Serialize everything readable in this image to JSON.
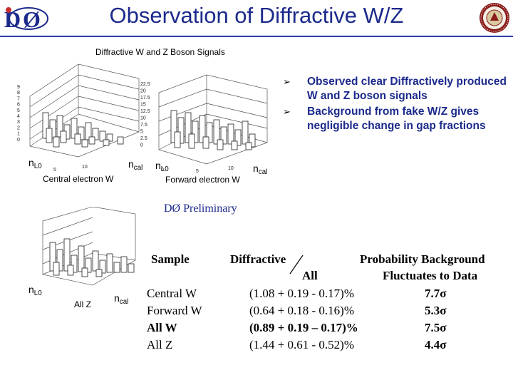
{
  "header": {
    "title": "Observation of Diffractive W/Z",
    "logo_text": "DØ",
    "colors": {
      "title": "#1c2a8c",
      "rule": "#2b3fa8"
    }
  },
  "figure": {
    "subtitle": "Diffractive W and Z Boson Signals",
    "plots": [
      {
        "caption": "Central electron W",
        "x_axis": "n",
        "x_axis_sub": "L0",
        "y_axis": "n",
        "y_axis_sub": "cal",
        "z_ticks": [
          "9",
          "8",
          "7",
          "6",
          "5",
          "4",
          "3",
          "2",
          "1",
          "0"
        ],
        "x_ticks": [
          "0",
          "5",
          "10"
        ]
      },
      {
        "caption": "Forward electron W",
        "x_axis": "n",
        "x_axis_sub": "L0",
        "y_axis": "n",
        "y_axis_sub": "cal",
        "z_ticks": [
          "22.5",
          "20",
          "17.5",
          "15",
          "12.5",
          "10",
          "7.5",
          "5",
          "2.5",
          "0"
        ],
        "x_ticks": [
          "0",
          "5",
          "10"
        ]
      },
      {
        "caption": "All Z",
        "x_axis": "n",
        "x_axis_sub": "L0",
        "y_axis": "n",
        "y_axis_sub": "cal",
        "z_ticks": [],
        "x_ticks": []
      }
    ]
  },
  "bullets": [
    {
      "icon": "arrow-bullet-icon",
      "text": "Observed clear Diffractively produced W and Z boson signals"
    },
    {
      "icon": "arrow-bullet-icon",
      "text": "Background from fake W/Z gives negligible change in gap fractions"
    }
  ],
  "preliminary": "DØ Preliminary",
  "table": {
    "headers": {
      "sample": "Sample",
      "diffractive": "Diffractive",
      "all": "All",
      "probability": "Probability Background",
      "fluctuates": "Fluctuates to Data"
    },
    "rows": [
      {
        "sample": "Central W",
        "ratio": "(1.08 + 0.19 - 0.17)%",
        "prob": "7.7σ",
        "bold": false
      },
      {
        "sample": "Forward W",
        "ratio": "(0.64 + 0.18 - 0.16)%",
        "prob": "5.3σ",
        "bold": false
      },
      {
        "sample": "All W",
        "ratio": "(0.89 + 0.19 – 0.17)%",
        "prob": "7.5σ",
        "bold": true
      },
      {
        "sample": "All Z",
        "ratio": "(1.44 + 0.61 - 0.52)%",
        "prob": "4.4σ",
        "bold": false
      }
    ]
  }
}
